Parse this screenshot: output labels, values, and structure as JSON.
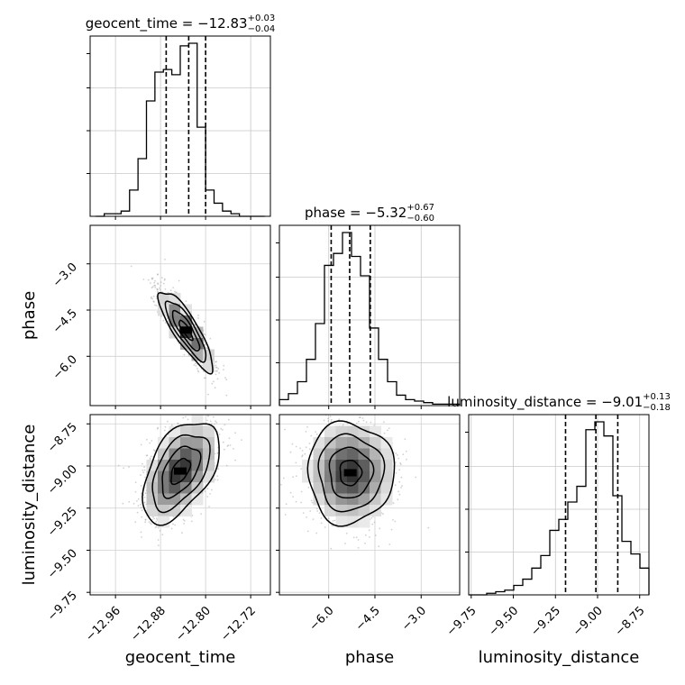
{
  "chart_data": {
    "type": "corner",
    "parameters": [
      "geocent_time",
      "phase",
      "luminosity_distance"
    ],
    "titles": [
      {
        "param": "geocent_time",
        "prefix": "geocent_time = ",
        "median": "−12.83",
        "plus": "+0.03",
        "minus": "−0.04"
      },
      {
        "param": "phase",
        "prefix": "phase = ",
        "median": "−5.32",
        "plus": "+0.67",
        "minus": "−0.60"
      },
      {
        "param": "luminosity_distance",
        "prefix": "luminosity_distance = ",
        "median": "−9.01",
        "plus": "+0.13",
        "minus": "−0.18"
      }
    ],
    "axes": {
      "geocent_time": {
        "range": [
          -13.005,
          -12.685
        ],
        "ticks": [
          -12.96,
          -12.88,
          -12.8,
          -12.72
        ],
        "tick_labels": [
          "−12.96",
          "−12.88",
          "−12.80",
          "−12.72"
        ]
      },
      "phase": {
        "range": [
          -7.6,
          -1.75
        ],
        "ticks": [
          -6.0,
          -4.5,
          -3.0
        ],
        "tick_labels": [
          "−6.0",
          "−4.5",
          "−3.0"
        ]
      },
      "luminosity_distance": {
        "range": [
          -9.765,
          -8.695
        ],
        "ticks": [
          -9.75,
          -9.5,
          -9.25,
          -9.0,
          -8.75
        ],
        "tick_labels": [
          "−9.75",
          "−9.50",
          "−9.25",
          "−9.00",
          "−8.75"
        ]
      }
    },
    "quantiles": {
      "geocent_time": [
        -12.87,
        -12.83,
        -12.8
      ],
      "phase": [
        -5.92,
        -5.32,
        -4.65
      ],
      "luminosity_distance": [
        -9.19,
        -9.01,
        -8.88
      ]
    },
    "histograms": {
      "geocent_time": {
        "edges_range": [
          -12.995,
          -12.695
        ],
        "counts": [
          0,
          1,
          1,
          2,
          10,
          22,
          44,
          55,
          56,
          54,
          65,
          66,
          34,
          10,
          5,
          2,
          1,
          0,
          0,
          0
        ]
      },
      "phase": {
        "edges_range": [
          -7.6,
          -1.75
        ],
        "counts": [
          4,
          8,
          16,
          31,
          55,
          94,
          102,
          116,
          100,
          87,
          52,
          31,
          16,
          7,
          4,
          3,
          2,
          1,
          1,
          1
        ]
      },
      "luminosity_distance": {
        "edges_range": [
          -9.765,
          -8.695
        ],
        "counts": [
          0,
          0,
          1,
          2,
          3,
          6,
          10,
          17,
          25,
          41,
          48,
          59,
          69,
          105,
          110,
          101,
          63,
          34,
          26,
          17
        ]
      }
    },
    "pairs": [
      {
        "x": "geocent_time",
        "y": "phase",
        "center": [
          -12.835,
          -5.15
        ],
        "sd": [
          0.024,
          0.65
        ],
        "rho": -0.85
      },
      {
        "x": "geocent_time",
        "y": "luminosity_distance",
        "center": [
          -12.845,
          -9.03
        ],
        "sd": [
          0.034,
          0.15
        ],
        "rho": 0.5
      },
      {
        "x": "phase",
        "y": "luminosity_distance",
        "center": [
          -5.3,
          -9.04
        ],
        "sd": [
          0.7,
          0.15
        ],
        "rho": 0.0
      }
    ],
    "contour_levels_sigma": [
      0.5,
      1.0,
      1.5,
      2.0
    ],
    "grid": true
  }
}
